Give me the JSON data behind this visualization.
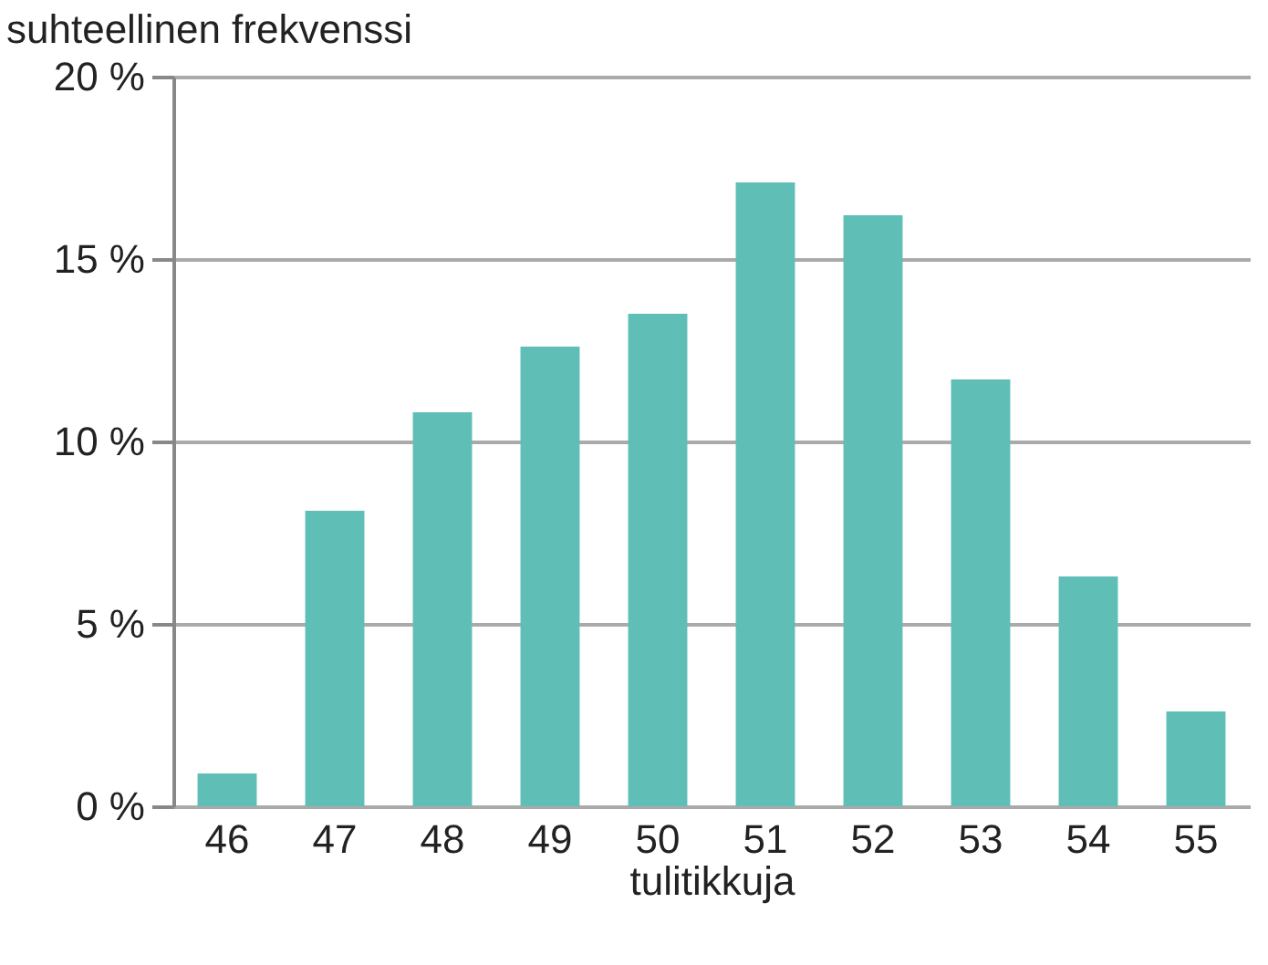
{
  "chart_data": {
    "type": "bar",
    "ylabel": "suhteellinen frekvenssi",
    "xlabel": "tulitikkuja",
    "categories": [
      "46",
      "47",
      "48",
      "49",
      "50",
      "51",
      "52",
      "53",
      "54",
      "55"
    ],
    "values": [
      0.9,
      8.1,
      10.8,
      12.6,
      13.5,
      17.1,
      16.2,
      11.7,
      6.3,
      2.6
    ],
    "color": "#5fbfb7",
    "ylim": [
      0,
      20
    ],
    "yticks": [
      {
        "value": 0,
        "label": "0 %"
      },
      {
        "value": 5,
        "label": "5 %"
      },
      {
        "value": 10,
        "label": "10 %"
      },
      {
        "value": 15,
        "label": "15 %"
      },
      {
        "value": 20,
        "label": "20 %"
      }
    ],
    "grid": "y"
  }
}
